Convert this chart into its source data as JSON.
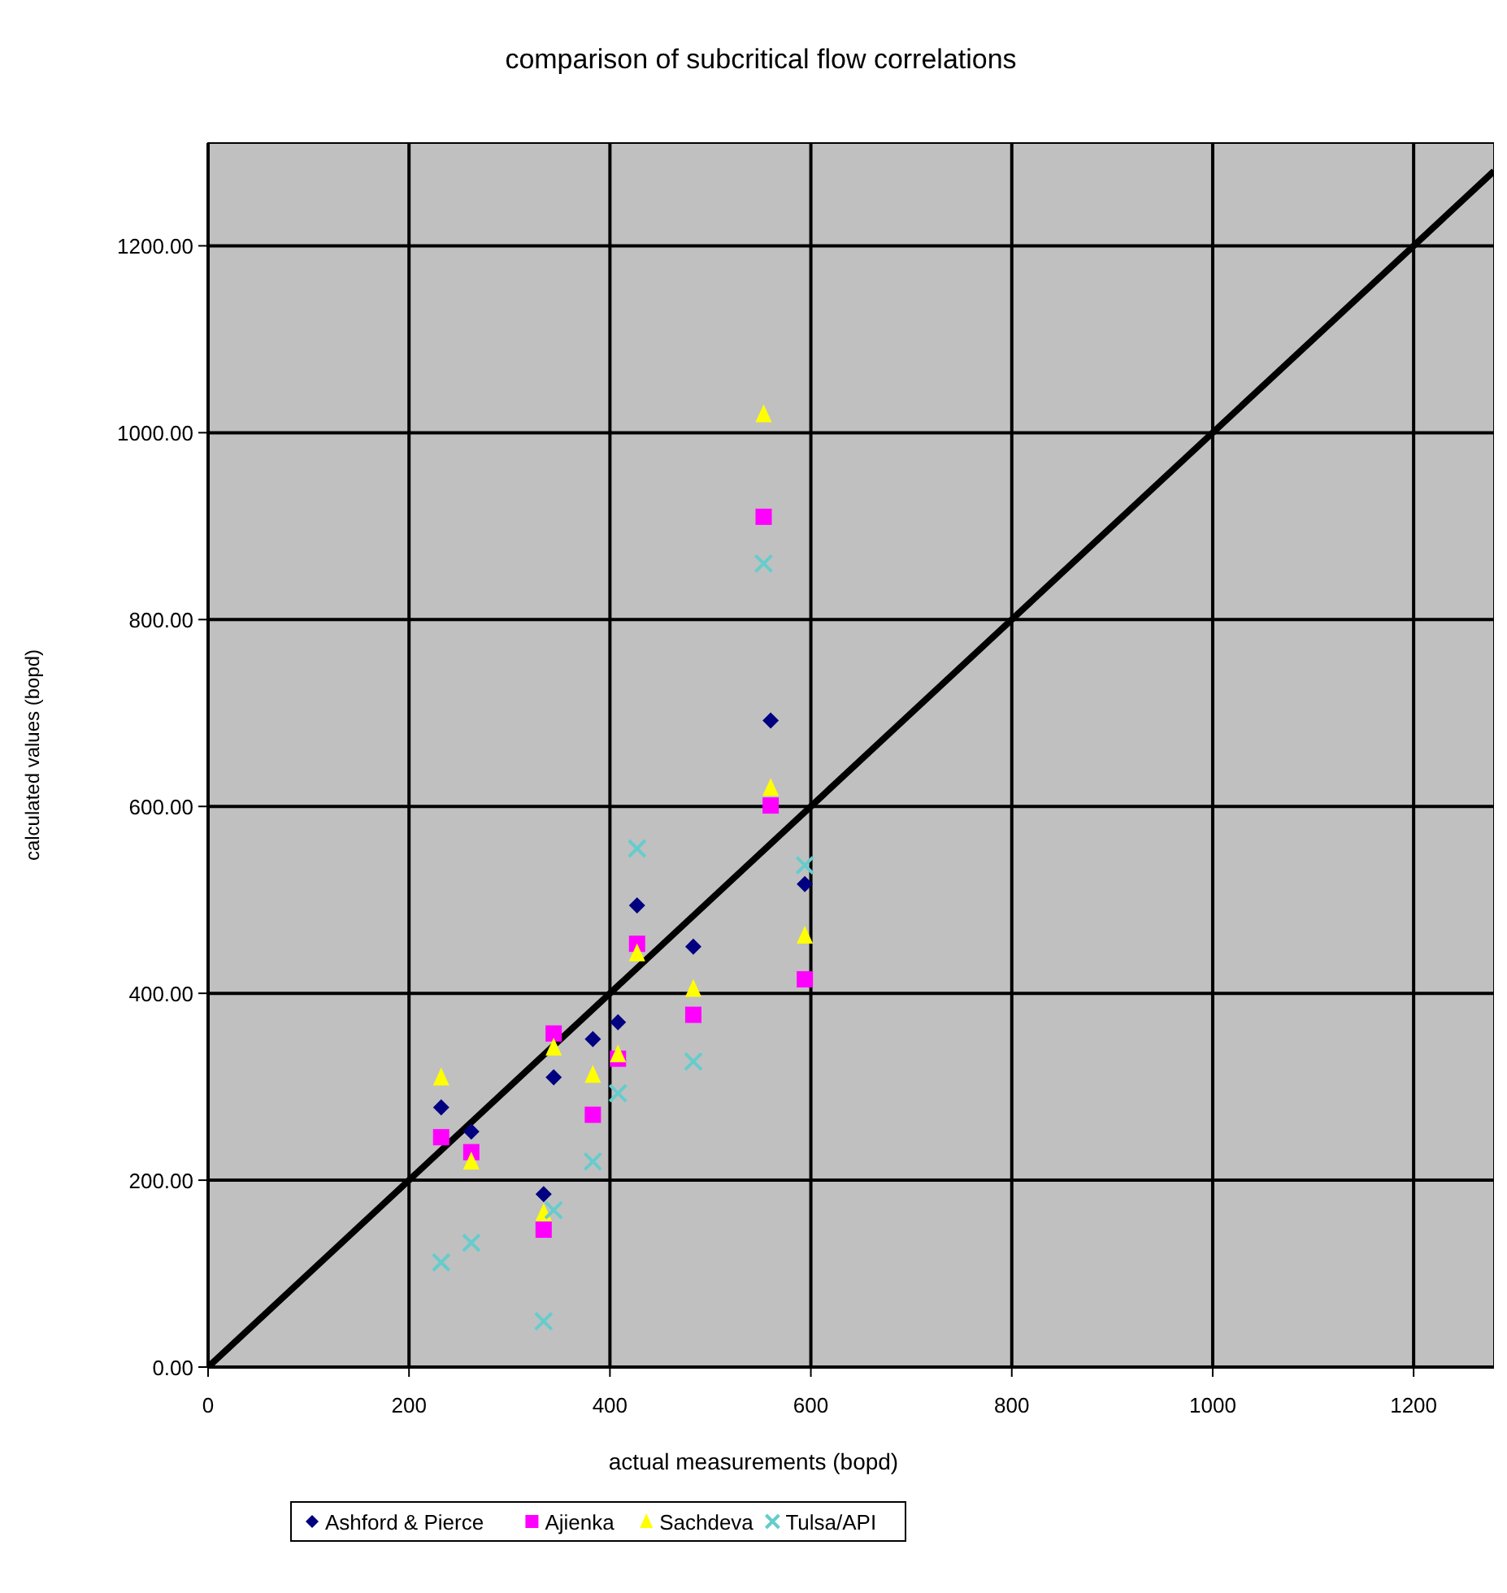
{
  "chart_data": {
    "type": "scatter",
    "title": "comparison of subcritical flow correlations",
    "xlabel": "actual measurements (bopd)",
    "ylabel": "calculated values (bopd)",
    "x": [
      232,
      262,
      334,
      344,
      383,
      408,
      427,
      483,
      553,
      560,
      594
    ],
    "series": [
      {
        "name": "Ashford & Pierce",
        "color": "#000080",
        "marker": "diamond",
        "values": [
          278,
          252,
          185,
          310,
          351,
          369,
          494,
          450,
          null,
          692,
          517
        ]
      },
      {
        "name": "Ajienka",
        "color": "#ff00ff",
        "marker": "square",
        "values": [
          246,
          230,
          147,
          357,
          270,
          330,
          453,
          377,
          910,
          601,
          415
        ]
      },
      {
        "name": "Sachdeva",
        "color": "#ffff00",
        "marker": "triangle",
        "values": [
          310,
          220,
          165,
          342,
          313,
          335,
          443,
          405,
          1020,
          620,
          462
        ]
      },
      {
        "name": "Tulsa/API",
        "color": "#66cccc",
        "marker": "cross",
        "values": [
          112,
          133,
          49,
          168,
          220,
          293,
          555,
          327,
          860,
          null,
          537
        ]
      },
      {
        "type": "line",
        "color": "#000000",
        "marker": "none",
        "x": [
          0,
          1280
        ],
        "values": [
          0,
          1280
        ]
      }
    ],
    "xlim": [
      0,
      1280
    ],
    "ylim": [
      0,
      1310
    ],
    "xticks": [
      0,
      200,
      400,
      600,
      800,
      1000,
      1200
    ],
    "yticks": [
      {
        "value": 0,
        "label": "0.00"
      },
      {
        "value": 200,
        "label": "200.00"
      },
      {
        "value": 400,
        "label": "400.00"
      },
      {
        "value": 600,
        "label": "600.00"
      },
      {
        "value": 800,
        "label": "800.00"
      },
      {
        "value": 1000,
        "label": "1000.00"
      },
      {
        "value": 1200,
        "label": "1200.00"
      }
    ],
    "grid": true,
    "legend": "bottom"
  }
}
